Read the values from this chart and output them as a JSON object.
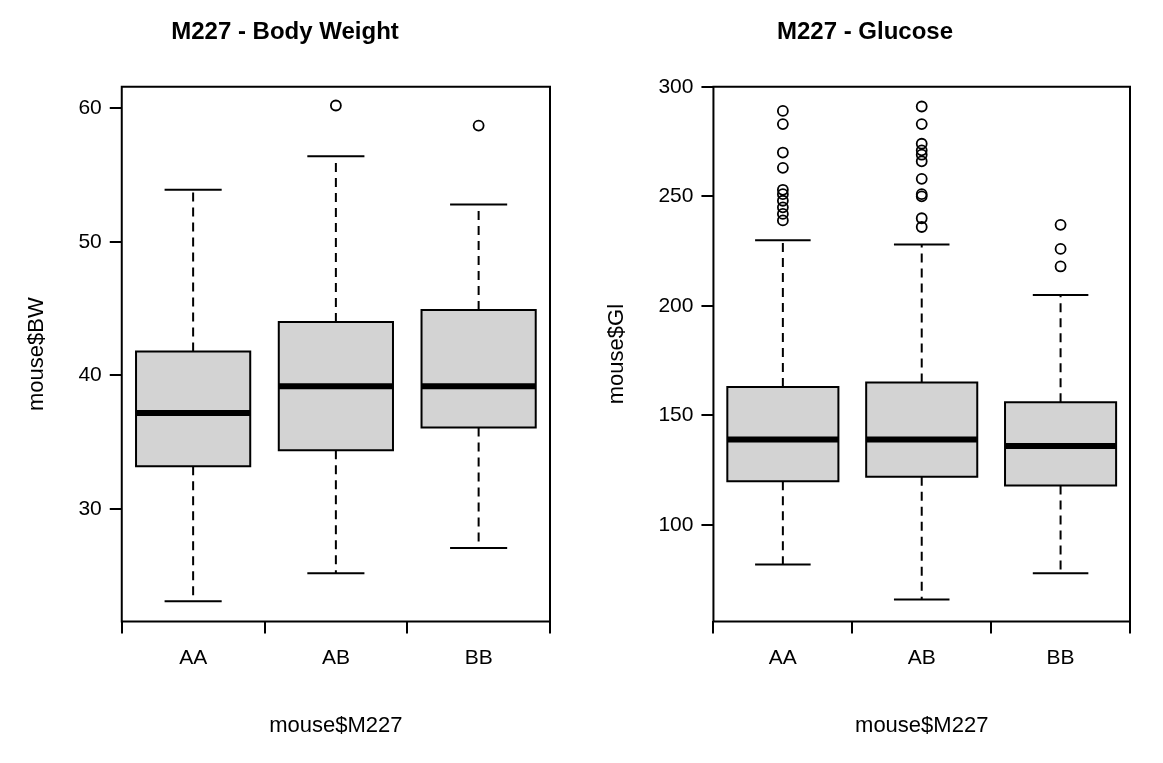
{
  "chart_data": [
    {
      "type": "box",
      "title": "M227 - Body Weight",
      "xlabel": "mouse$M227",
      "ylabel": "mouse$BW",
      "categories": [
        "AA",
        "AB",
        "BB"
      ],
      "ylim": [
        21.6,
        61.6
      ],
      "yticks": [
        30,
        40,
        50,
        60
      ],
      "grid": false,
      "series": [
        {
          "color": "#d3d3d3",
          "boxes": [
            {
              "low": 23.1,
              "q1": 33.2,
              "median": 37.2,
              "q3": 41.8,
              "high": 53.9
            },
            {
              "low": 25.2,
              "q1": 34.4,
              "median": 39.2,
              "q3": 44.0,
              "high": 56.4,
              "outliers": [
                60.2
              ]
            },
            {
              "low": 27.1,
              "q1": 36.1,
              "median": 39.2,
              "q3": 44.9,
              "high": 52.8,
              "outliers": [
                58.7
              ]
            }
          ]
        }
      ]
    },
    {
      "type": "box",
      "title": "M227 - Glucose",
      "xlabel": "mouse$M227",
      "ylabel": "mouse$Gl",
      "categories": [
        "AA",
        "AB",
        "BB"
      ],
      "ylim": [
        56,
        300
      ],
      "yticks": [
        100,
        150,
        200,
        250,
        300
      ],
      "grid": false,
      "series": [
        {
          "color": "#d3d3d3",
          "boxes": [
            {
              "low": 82,
              "q1": 120,
              "median": 139,
              "q3": 163,
              "high": 230,
              "outliers": [
                289,
                283,
                270,
                263,
                253,
                251,
                248,
                245,
                242,
                239
              ]
            },
            {
              "low": 66,
              "q1": 122,
              "median": 139,
              "q3": 165,
              "high": 228,
              "outliers": [
                291,
                283,
                274,
                271,
                269,
                266,
                258,
                251,
                250,
                240,
                236
              ]
            },
            {
              "low": 78,
              "q1": 118,
              "median": 136,
              "q3": 156,
              "high": 205,
              "outliers": [
                237,
                226,
                218
              ]
            }
          ]
        }
      ]
    }
  ]
}
